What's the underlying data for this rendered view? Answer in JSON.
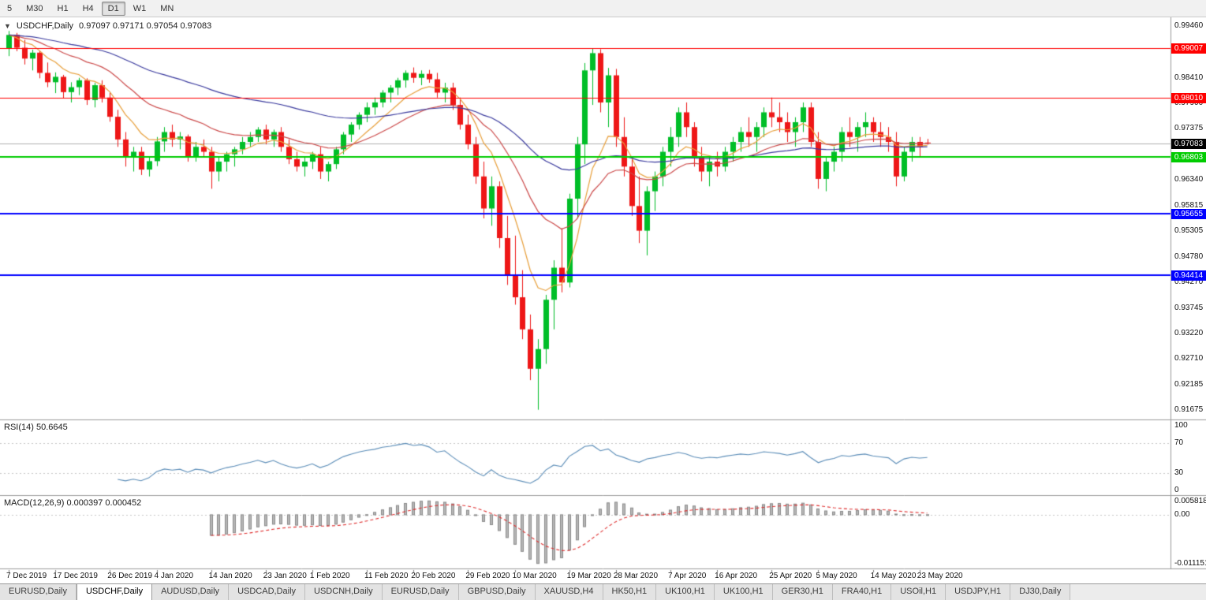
{
  "toolbar": {
    "periods": [
      "5",
      "M30",
      "H1",
      "H4",
      "D1",
      "W1",
      "MN"
    ],
    "active_period": "D1"
  },
  "chart": {
    "symbol_label": "USDCHF,Daily",
    "ohlc_text": "0.97097 0.97171 0.97054 0.97083",
    "current_price": "0.97083",
    "current_price_badge_color": "#000000",
    "price_axis_ticks": [
      "0.99460",
      "0.98410",
      "0.97900",
      "0.97375",
      "0.96340",
      "0.95815",
      "0.95305",
      "0.94780",
      "0.94270",
      "0.93745",
      "0.93220",
      "0.92710",
      "0.92185",
      "0.91675"
    ]
  },
  "rsi": {
    "label": "RSI(14) 50.6645",
    "period": 14,
    "value": "50.6645",
    "axis_labels": [
      "100",
      "70",
      "30",
      "0"
    ],
    "levels": [
      70,
      30
    ],
    "color": "#5B8DB8"
  },
  "macd": {
    "label": "MACD(12,26,9) 0.000397 0.000452",
    "fast": 12,
    "slow": 26,
    "signal": 9,
    "values": "0.000397 0.000452",
    "axis_top": "0.005818",
    "axis_zero": "0.00",
    "axis_bottom": "-0.011151",
    "histogram_color": "#b8b8b8",
    "histogram_border": "#8a8a8a",
    "signal_color": "#e03131"
  },
  "chart_data": {
    "type": "candlestick",
    "symbol": "USDCHF",
    "timeframe": "Daily",
    "title": "USDCHF,Daily",
    "ylim": [
      0.91483,
      0.99636
    ],
    "colors": {
      "bull": "#00BE28",
      "bear": "#EE1717"
    },
    "moving_averages": [
      {
        "period": 8,
        "type": "ema",
        "color": "#E8A03C"
      },
      {
        "period": 21,
        "type": "ema",
        "color": "#CC4A4A"
      },
      {
        "period": 55,
        "type": "ema",
        "color": "#3A3A9E"
      }
    ],
    "horizontal_lines": [
      {
        "price": 0.99007,
        "label": "0.99007",
        "color": "#FF0000",
        "width": 1
      },
      {
        "price": 0.9801,
        "label": "0.98010",
        "color": "#FF0000",
        "width": 1
      },
      {
        "price": 0.96803,
        "label": "0.96803",
        "color": "#00CC00",
        "width": 2
      },
      {
        "price": 0.95655,
        "label": "0.95655",
        "color": "#0000FF",
        "width": 2
      },
      {
        "price": 0.94414,
        "label": "0.94414",
        "color": "#0000FF",
        "width": 2
      }
    ],
    "x_axis_labels": [
      {
        "text": "7 Dec 2019",
        "bar": 0
      },
      {
        "text": "17 Dec 2019",
        "bar": 6
      },
      {
        "text": "26 Dec 2019",
        "bar": 13
      },
      {
        "text": "4 Jan 2020",
        "bar": 19
      },
      {
        "text": "14 Jan 2020",
        "bar": 26
      },
      {
        "text": "23 Jan 2020",
        "bar": 33
      },
      {
        "text": "1 Feb 2020",
        "bar": 39
      },
      {
        "text": "11 Feb 2020",
        "bar": 46
      },
      {
        "text": "20 Feb 2020",
        "bar": 52
      },
      {
        "text": "29 Feb 2020",
        "bar": 59
      },
      {
        "text": "10 Mar 2020",
        "bar": 65
      },
      {
        "text": "19 Mar 2020",
        "bar": 72
      },
      {
        "text": "28 Mar 2020",
        "bar": 78
      },
      {
        "text": "7 Apr 2020",
        "bar": 85
      },
      {
        "text": "16 Apr 2020",
        "bar": 91
      },
      {
        "text": "25 Apr 2020",
        "bar": 98
      },
      {
        "text": "5 May 2020",
        "bar": 104
      },
      {
        "text": "14 May 2020",
        "bar": 111
      },
      {
        "text": "23 May 2020",
        "bar": 117
      }
    ],
    "ohlc": [
      [
        0.99,
        0.9936,
        0.9885,
        0.9928
      ],
      [
        0.9928,
        0.9932,
        0.9895,
        0.9902
      ],
      [
        0.9902,
        0.9918,
        0.9868,
        0.988
      ],
      [
        0.988,
        0.9898,
        0.9856,
        0.9892
      ],
      [
        0.9892,
        0.9896,
        0.984,
        0.9851
      ],
      [
        0.9851,
        0.9872,
        0.9822,
        0.9832
      ],
      [
        0.9832,
        0.9852,
        0.981,
        0.9843
      ],
      [
        0.9843,
        0.9847,
        0.98,
        0.9812
      ],
      [
        0.9812,
        0.9832,
        0.9791,
        0.9822
      ],
      [
        0.9822,
        0.9841,
        0.9806,
        0.9836
      ],
      [
        0.9836,
        0.984,
        0.9786,
        0.9796
      ],
      [
        0.9796,
        0.9831,
        0.9781,
        0.9826
      ],
      [
        0.9826,
        0.9836,
        0.9791,
        0.9801
      ],
      [
        0.9801,
        0.9811,
        0.9752,
        0.9762
      ],
      [
        0.9762,
        0.9776,
        0.9701,
        0.9716
      ],
      [
        0.9716,
        0.9731,
        0.9661,
        0.9681
      ],
      [
        0.9681,
        0.9701,
        0.9651,
        0.9691
      ],
      [
        0.9691,
        0.9701,
        0.9644,
        0.9655
      ],
      [
        0.9655,
        0.9682,
        0.9641,
        0.9672
      ],
      [
        0.9672,
        0.9721,
        0.9662,
        0.9712
      ],
      [
        0.9712,
        0.9741,
        0.9691,
        0.9731
      ],
      [
        0.9731,
        0.9746,
        0.9701,
        0.9716
      ],
      [
        0.9716,
        0.9731,
        0.9696,
        0.9722
      ],
      [
        0.9722,
        0.9726,
        0.9671,
        0.9681
      ],
      [
        0.9681,
        0.9711,
        0.9671,
        0.9701
      ],
      [
        0.9701,
        0.9716,
        0.9681,
        0.9691
      ],
      [
        0.9691,
        0.9701,
        0.9616,
        0.9651
      ],
      [
        0.9651,
        0.9681,
        0.9631,
        0.9671
      ],
      [
        0.9671,
        0.9691,
        0.9651,
        0.9686
      ],
      [
        0.9686,
        0.9701,
        0.9661,
        0.9696
      ],
      [
        0.9696,
        0.9721,
        0.9686,
        0.9711
      ],
      [
        0.9711,
        0.9731,
        0.9701,
        0.9721
      ],
      [
        0.9721,
        0.9741,
        0.9711,
        0.9736
      ],
      [
        0.9736,
        0.9746,
        0.9706,
        0.9716
      ],
      [
        0.9716,
        0.9736,
        0.9701,
        0.9731
      ],
      [
        0.9731,
        0.9741,
        0.9691,
        0.9701
      ],
      [
        0.9701,
        0.9716,
        0.9666,
        0.9676
      ],
      [
        0.9676,
        0.9691,
        0.9651,
        0.9661
      ],
      [
        0.9661,
        0.9681,
        0.9641,
        0.9671
      ],
      [
        0.9671,
        0.9691,
        0.9656,
        0.9686
      ],
      [
        0.9686,
        0.9701,
        0.9636,
        0.9651
      ],
      [
        0.9651,
        0.9671,
        0.9631,
        0.9666
      ],
      [
        0.9666,
        0.9701,
        0.9656,
        0.9696
      ],
      [
        0.9696,
        0.9731,
        0.9686,
        0.9726
      ],
      [
        0.9726,
        0.9751,
        0.9711,
        0.9746
      ],
      [
        0.9746,
        0.9771,
        0.9736,
        0.9766
      ],
      [
        0.9766,
        0.9791,
        0.9751,
        0.9781
      ],
      [
        0.9781,
        0.9801,
        0.9766,
        0.9791
      ],
      [
        0.9791,
        0.9816,
        0.9781,
        0.9811
      ],
      [
        0.9811,
        0.9826,
        0.9791,
        0.9821
      ],
      [
        0.9821,
        0.9841,
        0.9806,
        0.9836
      ],
      [
        0.9836,
        0.9856,
        0.9821,
        0.9851
      ],
      [
        0.9851,
        0.9862,
        0.9831,
        0.9841
      ],
      [
        0.9841,
        0.9856,
        0.9826,
        0.9849
      ],
      [
        0.9849,
        0.9857,
        0.9831,
        0.9838
      ],
      [
        0.9838,
        0.9851,
        0.9801,
        0.9811
      ],
      [
        0.9811,
        0.9831,
        0.9791,
        0.9821
      ],
      [
        0.9821,
        0.9831,
        0.9776,
        0.9786
      ],
      [
        0.9786,
        0.9801,
        0.9736,
        0.9746
      ],
      [
        0.9746,
        0.9766,
        0.9696,
        0.9706
      ],
      [
        0.9706,
        0.9721,
        0.9626,
        0.9641
      ],
      [
        0.9641,
        0.9671,
        0.9556,
        0.9576
      ],
      [
        0.9576,
        0.9641,
        0.9541,
        0.9621
      ],
      [
        0.9621,
        0.9631,
        0.9496,
        0.9516
      ],
      [
        0.9516,
        0.9561,
        0.9421,
        0.9441
      ],
      [
        0.9441,
        0.9521,
        0.9381,
        0.9396
      ],
      [
        0.9396,
        0.9451,
        0.9311,
        0.9331
      ],
      [
        0.9331,
        0.9361,
        0.9228,
        0.9251
      ],
      [
        0.9251,
        0.9311,
        0.9168,
        0.9291
      ],
      [
        0.9291,
        0.9401,
        0.9261,
        0.9391
      ],
      [
        0.9391,
        0.9471,
        0.9331,
        0.9456
      ],
      [
        0.9456,
        0.9536,
        0.9406,
        0.9426
      ],
      [
        0.9426,
        0.9606,
        0.9416,
        0.9596
      ],
      [
        0.9596,
        0.9721,
        0.9556,
        0.9706
      ],
      [
        0.9706,
        0.9871,
        0.9666,
        0.9856
      ],
      [
        0.9856,
        0.9901,
        0.9786,
        0.9891
      ],
      [
        0.9891,
        0.9899,
        0.9771,
        0.9791
      ],
      [
        0.9791,
        0.9861,
        0.9741,
        0.9846
      ],
      [
        0.9846,
        0.9859,
        0.9701,
        0.9721
      ],
      [
        0.9721,
        0.9761,
        0.9641,
        0.9661
      ],
      [
        0.9661,
        0.9681,
        0.9561,
        0.9581
      ],
      [
        0.9581,
        0.9641,
        0.9506,
        0.9531
      ],
      [
        0.9531,
        0.9621,
        0.9481,
        0.9611
      ],
      [
        0.9611,
        0.9651,
        0.9571,
        0.9641
      ],
      [
        0.9641,
        0.9701,
        0.9621,
        0.9691
      ],
      [
        0.9691,
        0.9741,
        0.9661,
        0.9721
      ],
      [
        0.9721,
        0.9781,
        0.9701,
        0.9771
      ],
      [
        0.9771,
        0.9791,
        0.9721,
        0.9741
      ],
      [
        0.9741,
        0.9751,
        0.9661,
        0.9681
      ],
      [
        0.9681,
        0.9701,
        0.9631,
        0.9651
      ],
      [
        0.9651,
        0.9681,
        0.9621,
        0.9671
      ],
      [
        0.9671,
        0.9691,
        0.9641,
        0.9661
      ],
      [
        0.9661,
        0.9701,
        0.9651,
        0.9691
      ],
      [
        0.9691,
        0.9721,
        0.9671,
        0.9711
      ],
      [
        0.9711,
        0.9741,
        0.9691,
        0.9731
      ],
      [
        0.9731,
        0.9761,
        0.9701,
        0.9721
      ],
      [
        0.9721,
        0.9751,
        0.9691,
        0.9741
      ],
      [
        0.9741,
        0.9781,
        0.9721,
        0.9771
      ],
      [
        0.9771,
        0.9801,
        0.9741,
        0.9761
      ],
      [
        0.9761,
        0.9791,
        0.9731,
        0.9751
      ],
      [
        0.9751,
        0.9771,
        0.9711,
        0.9731
      ],
      [
        0.9731,
        0.9761,
        0.9701,
        0.9751
      ],
      [
        0.9751,
        0.9791,
        0.9731,
        0.9781
      ],
      [
        0.9781,
        0.9791,
        0.9701,
        0.9711
      ],
      [
        0.9711,
        0.9731,
        0.9616,
        0.9636
      ],
      [
        0.9636,
        0.9681,
        0.9611,
        0.9671
      ],
      [
        0.9671,
        0.9701,
        0.9651,
        0.9691
      ],
      [
        0.9691,
        0.9741,
        0.9671,
        0.9731
      ],
      [
        0.9731,
        0.9761,
        0.9701,
        0.9721
      ],
      [
        0.9721,
        0.9751,
        0.9691,
        0.9741
      ],
      [
        0.9741,
        0.9771,
        0.9721,
        0.9751
      ],
      [
        0.9751,
        0.9761,
        0.9711,
        0.9731
      ],
      [
        0.9731,
        0.9751,
        0.9701,
        0.9721
      ],
      [
        0.9721,
        0.9741,
        0.9691,
        0.9711
      ],
      [
        0.9711,
        0.9731,
        0.9621,
        0.9641
      ],
      [
        0.9641,
        0.9701,
        0.9631,
        0.9691
      ],
      [
        0.9691,
        0.9721,
        0.9671,
        0.9711
      ],
      [
        0.9711,
        0.9721,
        0.9681,
        0.9701
      ],
      [
        0.97097,
        0.97171,
        0.97054,
        0.97083
      ]
    ]
  },
  "tabs": {
    "items": [
      "EURUSD,Daily",
      "USDCHF,Daily",
      "AUDUSD,Daily",
      "USDCAD,Daily",
      "USDCNH,Daily",
      "EURUSD,Daily",
      "GBPUSD,Daily",
      "XAUUSD,H4",
      "HK50,H1",
      "UK100,H1",
      "UK100,H1",
      "GER30,H1",
      "FRA40,H1",
      "USOil,H1",
      "USDJPY,H1",
      "DJ30,Daily"
    ],
    "active_index": 1
  }
}
